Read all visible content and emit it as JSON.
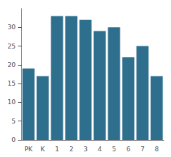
{
  "chart_data": {
    "type": "bar",
    "categories": [
      "PK",
      "K",
      "1",
      "2",
      "3",
      "4",
      "5",
      "6",
      "7",
      "8"
    ],
    "values": [
      19,
      17,
      33,
      33,
      32,
      29,
      30,
      22,
      25,
      17
    ],
    "color": "#2e6f8e",
    "ylim": [
      0,
      35
    ],
    "yticks": [
      0,
      5,
      10,
      15,
      20,
      25,
      30
    ],
    "grid": false
  }
}
